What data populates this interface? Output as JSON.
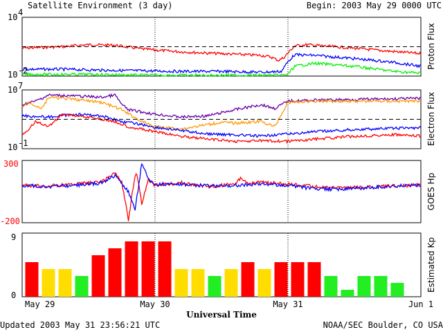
{
  "header": {
    "title": "Satellite Environment (3 day)",
    "begin": "Begin:  2003 May 29 0000 UTC"
  },
  "footer": {
    "updated": "Updated 2003 May 31 23:56:21 UTC",
    "credit": "NOAA/SEC Boulder, CO USA"
  },
  "chart_data": [
    {
      "type": "line",
      "panel": "proton",
      "ylabel": "Proton Flux",
      "yscale": "log",
      "ylim": [
        0.01,
        10000
      ],
      "tick_labels": {
        "top": "10",
        "top_exp": "4",
        "bottom": "10",
        "bottom_exp": "-2"
      },
      "threshold": 10,
      "series": [
        {
          "color": "#ff0000",
          "x": [
            0,
            0.1,
            0.3,
            0.5,
            0.7,
            0.8,
            0.9,
            1.0,
            1.2,
            1.4,
            1.6,
            1.8,
            1.87,
            1.93,
            1.97,
            2.05,
            2.15,
            2.3,
            2.5,
            2.7,
            2.9,
            3.0
          ],
          "y": [
            7,
            8,
            10,
            16,
            14,
            9,
            6,
            4.5,
            3,
            2.2,
            1.7,
            1.3,
            0.9,
            0.4,
            0.8,
            12,
            16,
            11,
            7,
            4,
            2.5,
            2
          ]
        },
        {
          "color": "#0000ff",
          "x": [
            0,
            0.3,
            0.6,
            0.9,
            1.2,
            1.5,
            1.8,
            1.95,
            2.0,
            2.05,
            2.2,
            2.5,
            2.8,
            3.0
          ],
          "y": [
            0.05,
            0.05,
            0.04,
            0.035,
            0.03,
            0.03,
            0.025,
            0.03,
            0.3,
            1.5,
            1.3,
            0.6,
            0.25,
            0.1
          ]
        },
        {
          "color": "#00ee00",
          "x": [
            0,
            0.5,
            1.0,
            1.5,
            1.95,
            2.0,
            2.05,
            2.2,
            2.5,
            2.8,
            3.0
          ],
          "y": [
            0.015,
            0.015,
            0.012,
            0.012,
            0.012,
            0.015,
            0.1,
            0.2,
            0.1,
            0.03,
            0.02
          ]
        }
      ]
    },
    {
      "type": "line",
      "panel": "electron",
      "ylabel": "Electron Flux",
      "yscale": "log",
      "ylim": [
        0.1,
        10000000
      ],
      "tick_labels": {
        "top": "10",
        "top_exp": "7",
        "bottom": "10",
        "bottom_exp": "-1"
      },
      "threshold": 1000,
      "series": [
        {
          "color": "#6a00a8",
          "x": [
            0,
            0.1,
            0.2,
            0.4,
            0.6,
            0.7,
            0.75,
            0.8,
            1.0,
            1.2,
            1.4,
            1.6,
            1.8,
            1.9,
            2.0,
            2.2,
            2.5,
            2.8,
            3.0
          ],
          "y": [
            100000.0,
            300000.0,
            2000000.0,
            1500000.0,
            1000000.0,
            2000000.0,
            100000.0,
            20000.0,
            5000.0,
            2000.0,
            3000.0,
            20000.0,
            100000.0,
            30000.0,
            300000.0,
            400000.0,
            500000.0,
            600000.0,
            700000.0
          ]
        },
        {
          "color": "#ff9900",
          "x": [
            0,
            0.05,
            0.15,
            0.2,
            0.4,
            0.6,
            0.75,
            0.9,
            1.0,
            1.2,
            1.4,
            1.5,
            1.6,
            1.8,
            1.9,
            2.0,
            2.2,
            2.5,
            2.8,
            3.0
          ],
          "y": [
            50000.0,
            200000.0,
            30000.0,
            1000000.0,
            500000.0,
            200000.0,
            20000.0,
            500.0,
            100.0,
            50,
            200,
            400,
            300,
            500,
            100,
            200000.0,
            300000.0,
            300000.0,
            300000.0,
            300000.0
          ]
        },
        {
          "color": "#0000ff",
          "x": [
            0,
            0.2,
            0.4,
            0.6,
            0.75,
            0.9,
            1.0,
            1.2,
            1.4,
            1.6,
            1.8,
            1.9,
            2.0,
            2.2,
            2.5,
            2.8,
            3.0
          ],
          "y": [
            3000.0,
            2000.0,
            5000.0,
            3000.0,
            500,
            200,
            80,
            30,
            10,
            8,
            5,
            8,
            10,
            20,
            40,
            60,
            70
          ]
        },
        {
          "color": "#ff0000",
          "x": [
            0,
            0.1,
            0.2,
            0.3,
            0.5,
            0.7,
            0.8,
            1.0,
            1.2,
            1.4,
            1.6,
            1.8,
            2.0,
            2.2,
            2.5,
            2.8,
            3.0
          ],
          "y": [
            5,
            500,
            100,
            5000.0,
            2000.0,
            500,
            100,
            20,
            5,
            2,
            1,
            1.2,
            1,
            2,
            5,
            8,
            5
          ]
        }
      ]
    },
    {
      "type": "line",
      "panel": "goes_hp",
      "ylabel": "GOES Hp",
      "ylim": [
        -200,
        300
      ],
      "tick_labels": {
        "top": "300",
        "bottom": "-200"
      },
      "series": [
        {
          "color": "#ff0000",
          "x": [
            0,
            0.2,
            0.4,
            0.6,
            0.7,
            0.75,
            0.8,
            0.83,
            0.86,
            0.9,
            0.95,
            1.0,
            1.2,
            1.4,
            1.6,
            1.65,
            1.7,
            1.8,
            2.0,
            2.2,
            2.4,
            2.6,
            2.8,
            3.0
          ],
          "y": [
            100,
            95,
            110,
            130,
            200,
            120,
            -180,
            50,
            220,
            -50,
            150,
            100,
            120,
            90,
            110,
            160,
            120,
            125,
            110,
            90,
            80,
            85,
            95,
            105
          ]
        },
        {
          "color": "#0000ff",
          "x": [
            0,
            0.2,
            0.4,
            0.6,
            0.7,
            0.8,
            0.85,
            0.9,
            0.95,
            1.0,
            1.2,
            1.4,
            1.6,
            1.8,
            2.0,
            2.2,
            2.4,
            2.6,
            2.8,
            3.0
          ],
          "y": [
            100,
            90,
            100,
            120,
            180,
            50,
            -100,
            280,
            150,
            110,
            110,
            95,
            100,
            110,
            100,
            70,
            70,
            80,
            95,
            100
          ]
        }
      ]
    },
    {
      "type": "bar",
      "panel": "kp",
      "ylabel": "Estimated Kp",
      "ylim": [
        0,
        9
      ],
      "tick_labels": {
        "top": "9",
        "bottom": "0"
      },
      "values": [
        5,
        4,
        4,
        3,
        6,
        7,
        8,
        8,
        8,
        4,
        4,
        3,
        4,
        5,
        4,
        5,
        5,
        5,
        3,
        1,
        3,
        3,
        2
      ],
      "colors": [
        "#ff0000",
        "#ffdd00",
        "#ffdd00",
        "#22ee22",
        "#ff0000",
        "#ff0000",
        "#ff0000",
        "#ff0000",
        "#ff0000",
        "#ffdd00",
        "#ffdd00",
        "#22ee22",
        "#ffdd00",
        "#ff0000",
        "#ffdd00",
        "#ff0000",
        "#ff0000",
        "#ff0000",
        "#22ee22",
        "#22ee22",
        "#22ee22",
        "#22ee22",
        "#22ee22"
      ]
    }
  ],
  "x_axis": {
    "label": "Universal Time",
    "ticks": [
      "May 29",
      "May 30",
      "May 31",
      "Jun 1"
    ]
  }
}
